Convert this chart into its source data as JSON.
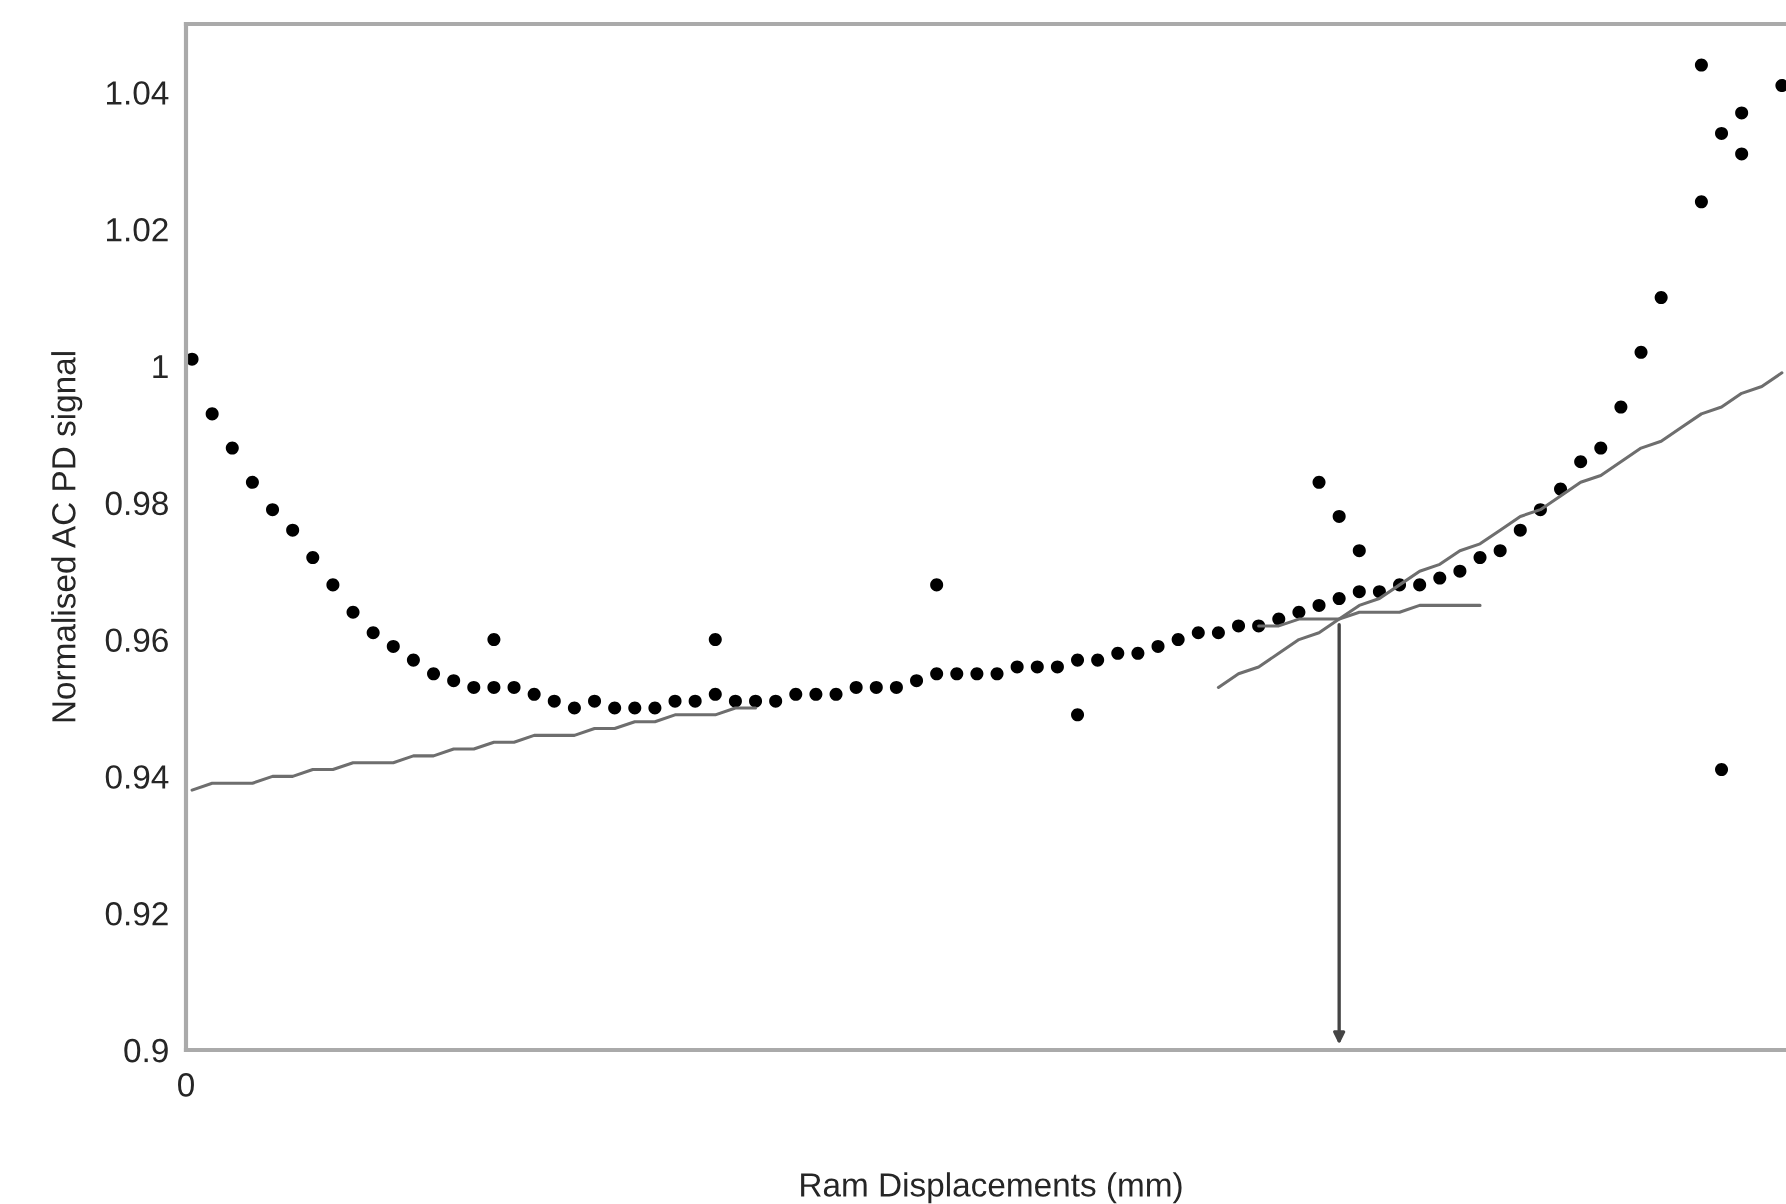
{
  "chart_data": {
    "type": "scatter",
    "xlabel": "Ram Displacements (mm)",
    "ylabel": "Normalised AC PD signal",
    "categories": [
      null,
      null,
      null,
      null,
      null,
      null,
      null,
      null,
      null,
      null,
      null,
      null,
      null,
      null,
      null,
      null,
      null,
      null,
      null,
      null,
      null,
      null,
      null,
      null,
      null,
      null,
      null,
      null,
      null,
      null,
      null,
      null,
      null,
      null,
      null,
      null,
      null,
      null,
      null,
      null,
      null,
      null,
      null,
      null,
      null,
      null,
      null,
      null,
      null,
      null,
      null,
      null,
      null,
      null,
      null,
      null,
      null,
      null,
      null,
      null,
      null,
      null,
      null,
      null,
      null,
      null,
      null,
      null,
      null,
      null,
      null,
      null,
      null,
      null,
      null,
      null,
      null,
      null,
      null,
      null
    ],
    "ylim": [
      0.9,
      1.05
    ],
    "yticks": [
      0.9,
      0.92,
      0.94,
      0.96,
      0.98,
      1,
      1.02,
      1.04
    ],
    "marker": "circle",
    "annotations": [
      "0"
    ],
    "series": [
      {
        "color": "#000000",
        "values": [
          1.001,
          0.993,
          0.988,
          0.983,
          0.979,
          0.976,
          0.972,
          0.968,
          0.964,
          0.961,
          0.959,
          0.957,
          0.955,
          0.954,
          0.953,
          0.953,
          0.953,
          0.952,
          0.951,
          0.95,
          0.951,
          0.95,
          0.95,
          0.95,
          0.951,
          0.951,
          0.952,
          0.951,
          0.951,
          0.951,
          0.952,
          0.952,
          0.952,
          0.953,
          0.953,
          0.953,
          0.954,
          0.955,
          0.955,
          0.955,
          0.955,
          0.956,
          0.956,
          0.956,
          0.957,
          0.957,
          0.958,
          0.958,
          0.959,
          0.96,
          0.961,
          0.961,
          0.962,
          0.962,
          0.963,
          0.964,
          0.965,
          0.966,
          0.967,
          0.967,
          0.968,
          0.968,
          0.969,
          0.97,
          0.972,
          0.973,
          0.976,
          0.979,
          0.982,
          0.986,
          0.988,
          0.994,
          1.002,
          1.01,
          null,
          1.024,
          1.034,
          1.037,
          null,
          1.041
        ]
      },
      {
        "color": "#000000",
        "values": [
          null,
          null,
          null,
          null,
          null,
          null,
          null,
          null,
          null,
          null,
          null,
          null,
          null,
          null,
          null,
          0.96,
          null,
          null,
          null,
          null,
          null,
          null,
          null,
          null,
          null,
          null,
          0.96,
          null,
          null,
          null,
          null,
          null,
          null,
          null,
          null,
          null,
          null,
          0.968,
          null,
          null,
          null,
          null,
          null,
          null,
          0.949,
          null,
          null,
          null,
          null,
          null,
          null,
          null,
          null,
          null,
          null,
          null,
          0.983,
          0.978,
          0.973,
          null,
          null,
          null,
          null,
          null,
          null,
          null,
          null,
          null,
          null,
          null,
          null,
          null,
          null,
          null,
          null,
          1.044,
          0.941,
          1.031,
          null,
          null
        ]
      },
      {
        "type": "line",
        "color": "#6e6e6e",
        "marker": "none",
        "values": [
          0.938,
          0.939,
          0.939,
          0.939,
          0.94,
          0.94,
          0.941,
          0.941,
          0.942,
          0.942,
          0.942,
          0.943,
          0.943,
          0.944,
          0.944,
          0.945,
          0.945,
          0.946,
          0.946,
          0.946,
          0.947,
          0.947,
          0.948,
          0.948,
          0.949,
          0.949,
          0.949,
          0.95,
          0.95,
          null,
          null,
          null,
          null,
          null,
          null,
          null,
          null,
          null,
          null,
          null,
          null,
          null,
          null,
          null,
          null,
          null,
          null,
          null,
          null,
          null,
          null,
          null,
          null,
          null,
          null,
          null,
          null,
          null,
          null,
          null,
          null,
          null,
          null,
          null,
          null,
          null,
          null,
          null,
          null,
          null,
          null,
          null,
          null,
          null,
          null,
          null,
          null,
          null,
          null,
          null
        ]
      },
      {
        "type": "line",
        "color": "#6e6e6e",
        "marker": "none",
        "values": [
          null,
          null,
          null,
          null,
          null,
          null,
          null,
          null,
          null,
          null,
          null,
          null,
          null,
          null,
          null,
          null,
          null,
          null,
          null,
          null,
          null,
          null,
          null,
          null,
          null,
          null,
          null,
          null,
          null,
          null,
          null,
          null,
          null,
          null,
          null,
          null,
          null,
          null,
          null,
          null,
          null,
          null,
          null,
          null,
          null,
          null,
          null,
          null,
          null,
          null,
          null,
          0.953,
          0.955,
          0.956,
          0.958,
          0.96,
          0.961,
          0.963,
          0.965,
          0.966,
          0.968,
          0.97,
          0.971,
          0.973,
          0.974,
          0.976,
          0.978,
          0.979,
          0.981,
          0.983,
          0.984,
          0.986,
          0.988,
          0.989,
          0.991,
          0.993,
          0.994,
          0.996,
          0.997,
          0.999
        ]
      },
      {
        "type": "line",
        "color": "#6e6e6e",
        "marker": "none",
        "values": [
          null,
          null,
          null,
          null,
          null,
          null,
          null,
          null,
          null,
          null,
          null,
          null,
          null,
          null,
          null,
          null,
          null,
          null,
          null,
          null,
          null,
          null,
          null,
          null,
          null,
          null,
          null,
          null,
          null,
          null,
          null,
          null,
          null,
          null,
          null,
          null,
          null,
          null,
          null,
          null,
          null,
          null,
          null,
          null,
          null,
          null,
          null,
          null,
          null,
          null,
          null,
          null,
          null,
          0.962,
          0.962,
          0.963,
          0.963,
          0.963,
          0.964,
          0.964,
          0.964,
          0.965,
          0.965,
          0.965,
          0.965,
          null,
          null,
          null,
          null,
          null,
          null,
          null,
          null,
          null,
          null,
          null,
          null,
          null,
          null,
          null
        ]
      }
    ]
  }
}
